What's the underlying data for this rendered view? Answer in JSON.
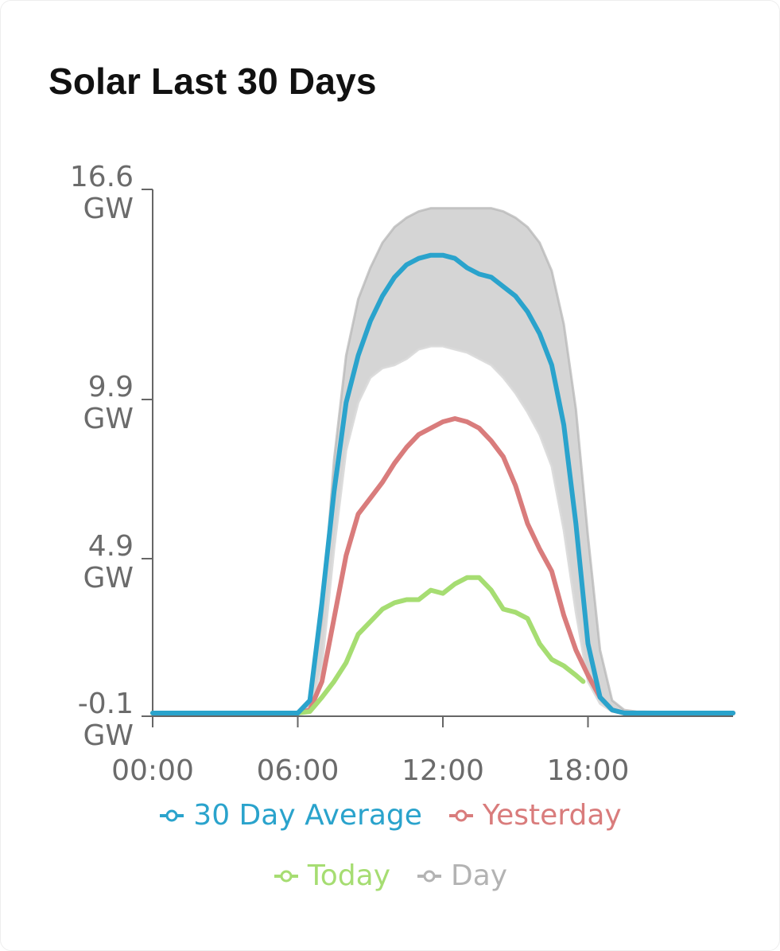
{
  "card": {
    "title": "Solar Last 30 Days"
  },
  "chart_data": {
    "type": "line",
    "title": "Solar Last 30 Days",
    "y_ticks": [
      {
        "value": 16.6,
        "line1": "16.6",
        "line2": "GW"
      },
      {
        "value": 9.9,
        "line1": "9.9",
        "line2": "GW"
      },
      {
        "value": 4.9,
        "line1": "4.9",
        "line2": "GW"
      },
      {
        "value": -0.1,
        "line1": "-0.1",
        "line2": "GW"
      }
    ],
    "x_ticks": [
      "00:00",
      "06:00",
      "12:00",
      "18:00"
    ],
    "x_tick_hours": [
      0,
      6,
      12,
      18
    ],
    "xlim": [
      0,
      24
    ],
    "ylim": [
      -0.1,
      16.6
    ],
    "grid": false,
    "legend_position": "bottom",
    "series": [
      {
        "name": "Day",
        "color": "#b3b3b3",
        "kind": "envelope",
        "x": [
          0,
          6,
          6.5,
          7,
          7.5,
          8,
          8.5,
          9,
          9.5,
          10,
          10.5,
          11,
          11.5,
          12,
          12.5,
          13,
          13.5,
          14,
          14.5,
          15,
          15.5,
          16,
          16.5,
          17,
          17.5,
          18,
          18.5,
          19,
          19.5,
          20,
          24
        ],
        "upper": [
          0,
          0,
          0.3,
          3.0,
          8.0,
          11.3,
          13.1,
          14.1,
          14.9,
          15.4,
          15.7,
          15.9,
          16.0,
          16.0,
          16.0,
          16.0,
          16.0,
          16.0,
          15.9,
          15.7,
          15.4,
          14.9,
          14.0,
          12.3,
          9.6,
          5.6,
          2.0,
          0.4,
          0.1,
          0.05,
          0
        ],
        "lower": [
          0,
          0,
          0.1,
          1.5,
          5.2,
          8.3,
          9.8,
          10.6,
          10.9,
          11.0,
          11.2,
          11.5,
          11.6,
          11.6,
          11.5,
          11.4,
          11.2,
          11.0,
          10.6,
          10.1,
          9.5,
          8.8,
          7.8,
          5.8,
          3.2,
          1.0,
          0.3,
          0.05,
          0,
          0,
          0
        ]
      },
      {
        "name": "30 Day Average",
        "color": "#2aa3cc",
        "x": [
          0,
          6,
          6.5,
          7,
          7.5,
          8,
          8.5,
          9,
          9.5,
          10,
          10.5,
          11,
          11.5,
          12,
          12.5,
          13,
          13.5,
          14,
          14.5,
          15,
          15.5,
          16,
          16.5,
          17,
          17.5,
          18,
          18.5,
          19,
          19.5,
          20,
          24
        ],
        "values": [
          0,
          0,
          0.4,
          3.5,
          7.0,
          9.8,
          11.3,
          12.4,
          13.2,
          13.8,
          14.2,
          14.4,
          14.5,
          14.5,
          14.4,
          14.1,
          13.9,
          13.8,
          13.5,
          13.2,
          12.7,
          12.0,
          11.0,
          9.1,
          6.0,
          2.2,
          0.5,
          0.1,
          0,
          0,
          0
        ]
      },
      {
        "name": "Yesterday",
        "color": "#d97c7c",
        "x": [
          0,
          6,
          6.5,
          7,
          7.5,
          8,
          8.5,
          9,
          9.5,
          10,
          10.5,
          11,
          11.5,
          12,
          12.5,
          13,
          13.5,
          14,
          14.5,
          15,
          15.5,
          16,
          16.5,
          17,
          17.5,
          18,
          18.5,
          19,
          19.5,
          20,
          24
        ],
        "values": [
          0,
          0,
          0.1,
          1.0,
          3.0,
          5.0,
          6.3,
          6.8,
          7.3,
          7.9,
          8.4,
          8.8,
          9.0,
          9.2,
          9.3,
          9.2,
          9.0,
          8.6,
          8.1,
          7.2,
          6.0,
          5.2,
          4.5,
          3.1,
          2.0,
          1.2,
          0.5,
          0.1,
          0,
          0,
          0
        ]
      },
      {
        "name": "Today",
        "color": "#a6dd72",
        "x": [
          0,
          6,
          6.5,
          7,
          7.5,
          8,
          8.5,
          9,
          9.5,
          10,
          10.5,
          11,
          11.5,
          12,
          12.5,
          13,
          13.5,
          14,
          14.5,
          15,
          15.5,
          16,
          16.5,
          17,
          17.5,
          17.8
        ],
        "values": [
          0,
          0,
          0.05,
          0.5,
          1.0,
          1.6,
          2.5,
          2.9,
          3.3,
          3.5,
          3.6,
          3.6,
          3.9,
          3.8,
          4.1,
          4.3,
          4.3,
          3.9,
          3.3,
          3.2,
          3.0,
          2.2,
          1.7,
          1.5,
          1.2,
          1.0
        ]
      }
    ]
  },
  "legend": {
    "row1": [
      {
        "label": "30 Day Average",
        "color": "#2aa3cc"
      },
      {
        "label": "Yesterday",
        "color": "#d97c7c"
      }
    ],
    "row2": [
      {
        "label": "Today",
        "color": "#a6dd72"
      },
      {
        "label": "Day",
        "color": "#b3b3b3"
      }
    ]
  }
}
